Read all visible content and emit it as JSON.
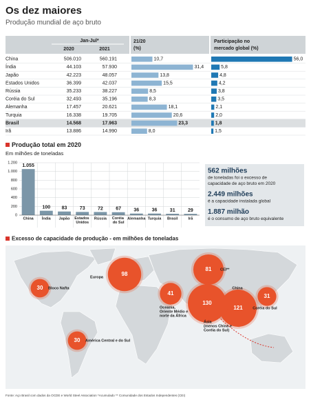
{
  "header": {
    "title": "Os dez maiores",
    "subtitle": "Produção mundial de aço bruto"
  },
  "table": {
    "columns": {
      "group": "Jan-Jul*",
      "y2020": "2020",
      "y2021": "2021",
      "growth": [
        "21/20",
        "(%)"
      ],
      "share": [
        "Participação no",
        "mercado global (%)"
      ]
    },
    "rows": [
      [
        "China",
        "506.010",
        "560.191"
      ],
      [
        "Índia",
        "44.103",
        "57.930"
      ],
      [
        "Japão",
        "42.223",
        "48.057"
      ],
      [
        "Estados Unidos",
        "36.399",
        "42.037"
      ],
      [
        "Rússia",
        "35.233",
        "38.227"
      ],
      [
        "Coréia do Sul",
        "32.493",
        "35.196"
      ],
      [
        "Alemanha",
        "17.457",
        "20.621"
      ],
      [
        "Turquia",
        "16.338",
        "19.705"
      ],
      [
        "Brasil",
        "14.568",
        "17.963"
      ],
      [
        "Irã",
        "13.886",
        "14.990"
      ]
    ],
    "highlight_row": 8,
    "growth": {
      "color": "#8db4d3",
      "values": [
        10.7,
        31.4,
        13.8,
        15.5,
        8.5,
        8.3,
        18.1,
        20.6,
        23.3,
        8.0
      ],
      "value_labels": [
        "10,7",
        "31,4",
        "13,8",
        "15,5",
        "8,5",
        "8,3",
        "18,1",
        "20,6",
        "23,3",
        "8,0"
      ]
    },
    "share": {
      "color": "#1f78b4",
      "values": [
        56.0,
        5.8,
        4.8,
        4.2,
        3.8,
        3.5,
        2.1,
        2.0,
        1.8,
        1.5
      ],
      "value_labels": [
        "56,0",
        "5,8",
        "4,8",
        "4,2",
        "3,8",
        "3,5",
        "2,1",
        "2,0",
        "1,8",
        "1,5"
      ]
    }
  },
  "chart_data": {
    "type": "bar",
    "title": "Produção total em 2020",
    "subtitle": "Em milhões de toneladas",
    "categories": [
      "China",
      "Índia",
      "Japão",
      "Estados Unidos",
      "Rússia",
      "Coréia do Sul",
      "Alemanha",
      "Turquia",
      "Brasil",
      "Irã"
    ],
    "values": [
      1055,
      100,
      83,
      73,
      72,
      67,
      36,
      36,
      31,
      29
    ],
    "value_labels": [
      "1.055",
      "100",
      "83",
      "73",
      "72",
      "67",
      "36",
      "36",
      "31",
      "29"
    ],
    "color": "#7b96a8",
    "ylim": [
      0,
      1200
    ],
    "yticks": [
      0,
      200,
      400,
      600,
      800,
      {
        "value": 1000,
        "label": "1.000"
      },
      {
        "value": 1200,
        "label": "1.200"
      }
    ],
    "grid": true
  },
  "facts": [
    {
      "value": "562 milhões",
      "lines": [
        "de toneladas foi o excesso de",
        "capacidade de aço bruto em 2020"
      ]
    },
    {
      "value": "2.449 milhões",
      "lines": [
        "é a capacidade instalada global"
      ]
    },
    {
      "value": "1.887 milhão",
      "lines": [
        "é o consumo de aço bruto equivalente"
      ]
    }
  ],
  "map": {
    "title": "Excesso de capacidade de produção - em milhões de toneladas",
    "color": "#e8532b",
    "bubbles": [
      {
        "name_lines": [
          "Bloco Nafta"
        ],
        "value": 30
      },
      {
        "name_lines": [
          "Europa"
        ],
        "value": 98
      },
      {
        "name_lines": [
          "CEI**"
        ],
        "value": 81
      },
      {
        "name_lines": [
          "China"
        ],
        "value": 121
      },
      {
        "name_lines": [
          "Coréia do Sul"
        ],
        "value": 31
      },
      {
        "name_lines": [
          "Oceania,",
          "Oriente Médio e",
          "norte da África"
        ],
        "value": 41
      },
      {
        "name_lines": [
          "Ásia",
          "(menos China e",
          "Coréia do Sul)"
        ],
        "value": 130
      },
      {
        "name_lines": [
          "América Central e do Sul"
        ],
        "value": 30
      }
    ],
    "footnote": "Fonte: Aço Brasil com dados da OCDE e World Steel Association *Acumulado ** Comunidade dos Estados Independentes (CEI)"
  }
}
